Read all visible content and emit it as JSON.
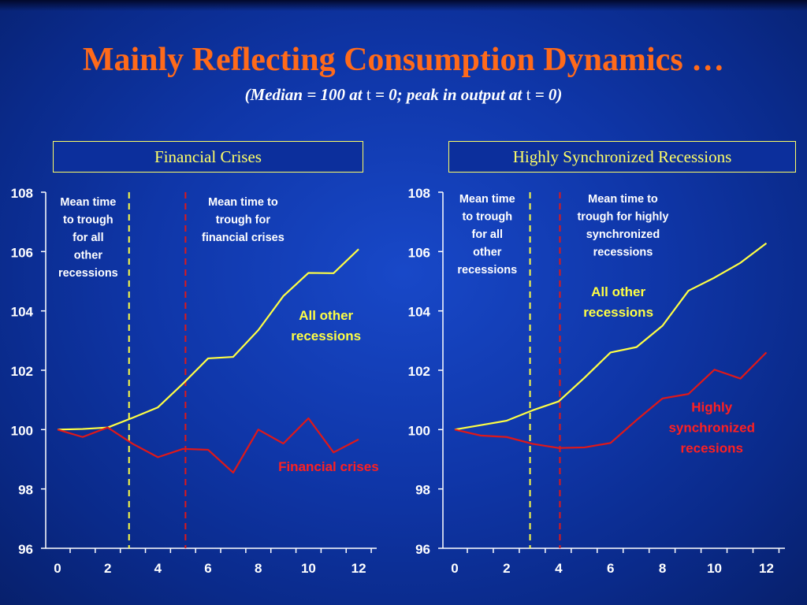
{
  "slide": {
    "title": "Mainly Reflecting Consumption Dynamics …",
    "subtitle_parts": [
      "(Median = 100 at ",
      "t",
      " = 0; peak in output at ",
      "t",
      " = 0)"
    ]
  },
  "colors": {
    "title": "#ff6a1a",
    "panel_title": "#ffff66",
    "axis": "#ffffff",
    "yellow_series": "#ffff44",
    "red_series": "#e01818",
    "red_label": "#ff2020",
    "yellow_label": "#ffff44"
  },
  "chart_data": [
    {
      "type": "line",
      "title": "Financial Crises",
      "x": [
        0,
        1,
        2,
        3,
        4,
        5,
        6,
        7,
        8,
        9,
        10,
        11,
        12
      ],
      "xticks": [
        0,
        2,
        4,
        6,
        8,
        10,
        12
      ],
      "xlim": [
        0,
        12.5
      ],
      "yticks": [
        96,
        98,
        100,
        102,
        104,
        106,
        108
      ],
      "ylim": [
        96,
        108
      ],
      "series": [
        {
          "name": "All other recessions",
          "color": "#ffff44",
          "values": [
            100,
            100.02,
            100.07,
            100.4,
            100.75,
            101.55,
            102.4,
            102.45,
            103.35,
            104.5,
            105.28,
            105.27,
            106.08
          ]
        },
        {
          "name": "Financial crises",
          "color": "#e01818",
          "values": [
            100,
            99.75,
            100.07,
            99.52,
            99.07,
            99.35,
            99.32,
            98.55,
            100,
            99.53,
            100.38,
            99.23,
            99.67
          ]
        }
      ],
      "vlines": [
        {
          "x": 2.85,
          "color": "#ffff44",
          "label": [
            "Mean time",
            "to trough",
            "for all",
            "other",
            "recessions"
          ]
        },
        {
          "x": 5.1,
          "color": "#e01818",
          "label": [
            "Mean time to",
            "trough for",
            "financial crises"
          ]
        }
      ],
      "series_labels": [
        {
          "lines": [
            "All other",
            "recessions"
          ],
          "color": "#ffff44",
          "x": 10.7,
          "y": 103.7
        },
        {
          "lines": [
            "Financial crises"
          ],
          "color": "#ff2020",
          "x": 10.8,
          "y": 98.6
        }
      ]
    },
    {
      "type": "line",
      "title": "Highly Synchronized Recessions",
      "x": [
        0,
        1,
        2,
        3,
        4,
        5,
        6,
        7,
        8,
        9,
        10,
        11,
        12
      ],
      "xticks": [
        0,
        2,
        4,
        6,
        8,
        10,
        12
      ],
      "xlim": [
        0,
        12.5
      ],
      "yticks": [
        96,
        98,
        100,
        102,
        104,
        106,
        108
      ],
      "ylim": [
        96,
        108
      ],
      "series": [
        {
          "name": "All other recessions",
          "color": "#ffff44",
          "values": [
            100,
            100.15,
            100.3,
            100.65,
            100.95,
            101.75,
            102.6,
            102.78,
            103.5,
            104.68,
            105.12,
            105.62,
            106.28
          ]
        },
        {
          "name": "Highly synchronized recesions",
          "color": "#e01818",
          "values": [
            100,
            99.8,
            99.75,
            99.52,
            99.38,
            99.4,
            99.55,
            100.32,
            101.05,
            101.2,
            102.02,
            101.72,
            102.6
          ]
        }
      ],
      "vlines": [
        {
          "x": 2.9,
          "color": "#ffff44",
          "label": [
            "Mean time",
            "to trough",
            "for all",
            "other",
            "recessions"
          ]
        },
        {
          "x": 4.05,
          "color": "#e01818",
          "label": [
            "Mean time to",
            "trough for highly",
            "synchronized",
            "recessions"
          ]
        }
      ],
      "series_labels": [
        {
          "lines": [
            "All other",
            "recessions"
          ],
          "color": "#ffff44",
          "x": 6.3,
          "y": 104.5
        },
        {
          "lines": [
            "Highly",
            "synchronized",
            "recesions"
          ],
          "color": "#ff2020",
          "x": 9.9,
          "y": 100.6
        }
      ]
    }
  ]
}
